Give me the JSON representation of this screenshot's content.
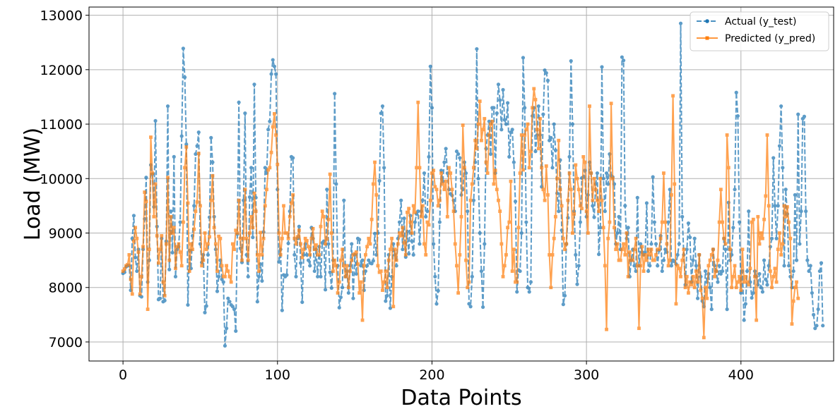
{
  "chart_data": {
    "type": "line",
    "title": "",
    "xlabel": "Data Points",
    "ylabel": "Load (MW)",
    "xlim": [
      -22,
      460
    ],
    "ylim": [
      6650,
      13150
    ],
    "xticks": [
      0,
      100,
      200,
      300,
      400
    ],
    "yticks": [
      7000,
      8000,
      9000,
      10000,
      11000,
      12000,
      13000
    ],
    "grid": true,
    "legend_position": "top-right",
    "series": [
      {
        "name": "Actual (y_test)",
        "color": "#1f77b4",
        "line_style": "dashed",
        "marker": "circle",
        "values": [
          8260,
          8280,
          8380,
          8400,
          8400,
          7950,
          8900,
          9320,
          8550,
          8300,
          8700,
          7850,
          7830,
          8700,
          9260,
          10020,
          8100,
          8500,
          10250,
          10080,
          9480,
          11060,
          9120,
          7780,
          7800,
          8900,
          7740,
          7760,
          8850,
          11330,
          8330,
          9400,
          8640,
          10400,
          8200,
          8700,
          8750,
          9200,
          10780,
          12390,
          11860,
          10630,
          7680,
          8680,
          8350,
          8950,
          9500,
          10450,
          10600,
          10850,
          8800,
          8460,
          8600,
          7540,
          7660,
          8600,
          9290,
          10750,
          10300,
          9300,
          8700,
          7930,
          8200,
          8500,
          8150,
          8100,
          6930,
          7250,
          7800,
          7740,
          7680,
          7650,
          7600,
          7200,
          8980,
          11400,
          8720,
          8460,
          9600,
          11200,
          8600,
          8200,
          9660,
          10200,
          8920,
          11730,
          9650,
          7740,
          8200,
          8430,
          8120,
          9020,
          10200,
          10100,
          10900,
          11050,
          11920,
          12180,
          12060,
          11920,
          9800,
          8470,
          8700,
          7580,
          8230,
          8200,
          8230,
          8810,
          9400,
          10400,
          10380,
          8600,
          8200,
          8900,
          9120,
          8450,
          7730,
          8600,
          8800,
          8600,
          8500,
          8400,
          9100,
          8900,
          8300,
          8700,
          8200,
          8750,
          8200,
          8820,
          8850,
          7960,
          9800,
          8800,
          8280,
          7990,
          8500,
          11560,
          9900,
          8400,
          7630,
          7820,
          8000,
          9600,
          8200,
          8300,
          7900,
          8400,
          8800,
          7800,
          8600,
          8250,
          8900,
          8880,
          8400,
          8500,
          7950,
          8300,
          8400,
          8500,
          8450,
          8440,
          8490,
          8990,
          8600,
          9000,
          9960,
          11200,
          11330,
          10200,
          7750,
          7850,
          8600,
          7620,
          8200,
          8800,
          8600,
          8400,
          8900,
          9200,
          9600,
          8700,
          9270,
          8560,
          9030,
          8620,
          9320,
          8850,
          8600,
          9200,
          9350,
          9400,
          8800,
          9400,
          9600,
          10100,
          9300,
          9400,
          10400,
          12060,
          11300,
          8800,
          8200,
          7700,
          7940,
          9200,
          10150,
          9950,
          10300,
          10550,
          10100,
          9800,
          9720,
          9690,
          9600,
          9400,
          10500,
          10450,
          10380,
          9700,
          9800,
          10300,
          10100,
          9400,
          7700,
          7650,
          8200,
          9600,
          10300,
          12380,
          10000,
          9000,
          8300,
          7640,
          8800,
          10550,
          10800,
          11050,
          10450,
          11300,
          11300,
          10100,
          11200,
          11730,
          11440,
          10900,
          11630,
          11080,
          11000,
          11390,
          10400,
          10850,
          10900,
          10300,
          9580,
          7920,
          8320,
          8300,
          9000,
          12220,
          11300,
          9200,
          8000,
          7920,
          8100,
          11150,
          11300,
          10500,
          10800,
          11330,
          10800,
          9850,
          11180,
          11990,
          11940,
          11800,
          10700,
          10750,
          10200,
          11000,
          10520,
          9730,
          9400,
          10340,
          9050,
          7690,
          7850,
          8800,
          9280,
          10400,
          12160,
          11000,
          9400,
          8600,
          8060,
          8400,
          9200,
          10010,
          10030,
          10150,
          9300,
          9700,
          10300,
          10100,
          9500,
          9290,
          9900,
          10100,
          8610,
          9100,
          12050,
          10000,
          9400,
          10100,
          9900,
          10450,
          10050,
          10030,
          9900,
          8800,
          9000,
          9300,
          8700,
          12230,
          12170,
          9500,
          8900,
          9100,
          8200,
          8500,
          8700,
          8400,
          8300,
          9650,
          8400,
          8800,
          8650,
          8600,
          8650,
          9550,
          8300,
          8400,
          8800,
          10030,
          9200,
          8800,
          8400,
          8680,
          8950,
          8300,
          8500,
          8700,
          8650,
          9200,
          9800,
          8400,
          8500,
          8480,
          8430,
          8600,
          8800,
          12850,
          9300,
          8600,
          8050,
          8700,
          9180,
          8920,
          8100,
          8500,
          8900,
          8400,
          7800,
          8600,
          8200,
          7750,
          7650,
          8300,
          8100,
          8250,
          8000,
          7600,
          8700,
          8400,
          8300,
          8100,
          8400,
          8250,
          8300,
          8900,
          8700,
          7600,
          9560,
          8500,
          8600,
          9100,
          9800,
          11580,
          11150,
          9200,
          7900,
          8300,
          7400,
          7700,
          8300,
          9400,
          8100,
          7810,
          7900,
          8300,
          8200,
          8050,
          8250,
          8000,
          7920,
          8500,
          8150,
          8050,
          8400,
          8750,
          8900,
          10380,
          9500,
          8900,
          9500,
          10600,
          11330,
          10200,
          8400,
          9800,
          9350,
          8400,
          8200,
          8000,
          8300,
          9700,
          8500,
          11180,
          8800,
          9400,
          11100,
          11140,
          9400,
          8500,
          8300,
          8400,
          7900,
          7500,
          7250,
          7300,
          7600,
          8300,
          8450,
          7300
        ]
      },
      {
        "name": "Predicted (y_pred)",
        "color": "#ff7f0e",
        "line_style": "solid",
        "marker": "square",
        "values": [
          8300,
          8340,
          8400,
          8420,
          8600,
          8150,
          7880,
          8850,
          9100,
          8900,
          8650,
          7880,
          8200,
          8750,
          9750,
          9580,
          7600,
          8700,
          10760,
          10100,
          9300,
          9900,
          8950,
          8450,
          8700,
          8950,
          8100,
          7850,
          8800,
          10020,
          8500,
          9300,
          9000,
          9100,
          8350,
          8750,
          8800,
          8650,
          8400,
          9200,
          10200,
          10580,
          9550,
          8300,
          8800,
          8700,
          9070,
          9400,
          9570,
          10460,
          9500,
          8400,
          8500,
          9000,
          8700,
          8800,
          8930,
          9600,
          10050,
          9100,
          8800,
          8300,
          8940,
          8900,
          8400,
          8200,
          8200,
          8400,
          8300,
          8200,
          8100,
          8800,
          8700,
          9050,
          9000,
          9600,
          8900,
          8500,
          8900,
          9800,
          8900,
          8500,
          9000,
          9300,
          9100,
          9730,
          9400,
          8600,
          8300,
          9010,
          8600,
          8900,
          9500,
          9800,
          10160,
          10200,
          10480,
          10950,
          11190,
          10800,
          10260,
          9000,
          8600,
          8900,
          9500,
          9000,
          9000,
          8900,
          9300,
          9550,
          9700,
          8900,
          8800,
          8930,
          9050,
          8800,
          8550,
          8700,
          8900,
          8860,
          8750,
          8600,
          8900,
          9080,
          8700,
          8780,
          8600,
          8600,
          9120,
          9400,
          9300,
          8800,
          8890,
          9250,
          10080,
          9000,
          8300,
          8500,
          8400,
          7900,
          8100,
          8500,
          8700,
          8400,
          8200,
          8400,
          8000,
          8300,
          8500,
          8600,
          8620,
          8650,
          8430,
          7900,
          8100,
          7400,
          8400,
          8600,
          8750,
          8900,
          8800,
          9250,
          9900,
          10300,
          9700,
          8400,
          8280,
          8300,
          7950,
          8100,
          8300,
          8000,
          8500,
          8700,
          8900,
          7650,
          8700,
          8500,
          8800,
          9000,
          8950,
          9100,
          8820,
          8600,
          9380,
          9450,
          9200,
          9000,
          9500,
          9380,
          10200,
          11400,
          10200,
          9300,
          9500,
          8800,
          8600,
          9200,
          9150,
          9600,
          10100,
          10150,
          9850,
          9800,
          9500,
          9600,
          10100,
          9900,
          9800,
          9950,
          9300,
          10200,
          10100,
          9800,
          9400,
          8800,
          8400,
          7900,
          8600,
          9300,
          10980,
          10200,
          8500,
          8000,
          8100,
          9600,
          9900,
          10200,
          10700,
          10550,
          11000,
          11420,
          10700,
          10900,
          11100,
          10300,
          10100,
          10800,
          11000,
          11050,
          9900,
          10150,
          9800,
          9600,
          9400,
          8800,
          8200,
          8400,
          8600,
          9100,
          9200,
          9950,
          8300,
          8700,
          8100,
          8100,
          9100,
          10100,
          10800,
          10160,
          10800,
          10900,
          11000,
          10200,
          10500,
          11300,
          11650,
          11450,
          10900,
          10550,
          11100,
          10200,
          9800,
          9600,
          10230,
          9700,
          8600,
          8000,
          8600,
          8900,
          9300,
          10000,
          10700,
          9800,
          9500,
          8900,
          8700,
          8800,
          9600,
          10100,
          9800,
          9000,
          9350,
          10250,
          10000,
          9800,
          9500,
          9450,
          10400,
          10300,
          9400,
          9000,
          11330,
          10100,
          9600,
          10000,
          9800,
          9600,
          9400,
          10000,
          9600,
          9100,
          8400,
          7230,
          8900,
          9200,
          11380,
          10000,
          9100,
          8700,
          8800,
          8500,
          8500,
          8700,
          8800,
          8600,
          9000,
          8200,
          8650,
          8500,
          8500,
          8700,
          8900,
          8400,
          7250,
          8400,
          8750,
          8300,
          8600,
          8500,
          8700,
          8600,
          8700,
          8500,
          8500,
          8600,
          8700,
          8700,
          8900,
          9200,
          10100,
          9200,
          8800,
          8400,
          8500,
          9700,
          11520,
          9900,
          7700,
          8400,
          8350,
          8200,
          8500,
          8700,
          8000,
          8200,
          7900,
          8100,
          8050,
          8200,
          8000,
          8300,
          8100,
          8600,
          7950,
          7800,
          7080,
          8000,
          7800,
          8400,
          8500,
          8600,
          8700,
          8200,
          8300,
          8500,
          9200,
          9800,
          9200,
          8900,
          8800,
          10800,
          10200,
          8700,
          8000,
          8200,
          8400,
          8000,
          8100,
          8200,
          7950,
          8700,
          8100,
          8200,
          8100,
          8050,
          8350,
          9200,
          9250,
          8200,
          7400,
          9300,
          8800,
          9000,
          8900,
          9250,
          9680,
          10800,
          9500,
          8300,
          8000,
          8200,
          8350,
          8100,
          8700,
          9000,
          8600,
          8800,
          9500,
          9300,
          9480,
          9200,
          8900,
          7330,
          7750,
          8000,
          8100,
          7800
        ]
      }
    ]
  }
}
